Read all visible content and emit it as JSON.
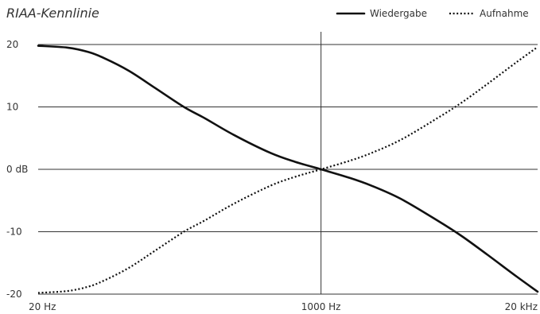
{
  "chart_data": {
    "type": "line",
    "title": "RIAA-Kennlinie",
    "xlabel": "",
    "ylabel": "",
    "x_scale": "log",
    "xlim": [
      20,
      20000
    ],
    "ylim": [
      -20,
      20
    ],
    "grid": "horizontal lines at y ticks, vertical line at 1000 Hz",
    "legend_position": "top-right",
    "x_ticks": [
      {
        "value": 20,
        "label": "20 Hz"
      },
      {
        "value": 1000,
        "label": "1000 Hz"
      },
      {
        "value": 20000,
        "label": "20 kHz"
      }
    ],
    "y_ticks": [
      {
        "value": 20,
        "label": "20"
      },
      {
        "value": 10,
        "label": "10"
      },
      {
        "value": 0,
        "label": "0 dB"
      },
      {
        "value": -10,
        "label": "-10"
      },
      {
        "value": -20,
        "label": "-20"
      }
    ],
    "series": [
      {
        "name": "Wiedergabe",
        "style": "solid",
        "x": [
          20,
          30,
          40,
          50,
          70,
          100,
          150,
          200,
          300,
          500,
          700,
          1000,
          1500,
          2000,
          3000,
          5000,
          7000,
          10000,
          15000,
          20000
        ],
        "y": [
          19.8,
          19.5,
          18.8,
          17.8,
          15.8,
          13.1,
          10.0,
          8.2,
          5.5,
          2.6,
          1.2,
          0.0,
          -1.4,
          -2.6,
          -4.7,
          -8.2,
          -10.7,
          -13.7,
          -17.2,
          -19.6
        ]
      },
      {
        "name": "Aufnahme",
        "style": "dotted",
        "x": [
          20,
          30,
          40,
          50,
          70,
          100,
          150,
          200,
          300,
          500,
          700,
          1000,
          1500,
          2000,
          3000,
          5000,
          7000,
          10000,
          15000,
          20000
        ],
        "y": [
          -19.8,
          -19.5,
          -18.8,
          -17.8,
          -15.8,
          -13.1,
          -10.0,
          -8.2,
          -5.5,
          -2.6,
          -1.2,
          0.0,
          1.4,
          2.6,
          4.7,
          8.2,
          10.7,
          13.7,
          17.2,
          19.6
        ]
      }
    ],
    "colors": {
      "line": "#111111",
      "grid": "#333333",
      "text": "#333333"
    }
  }
}
